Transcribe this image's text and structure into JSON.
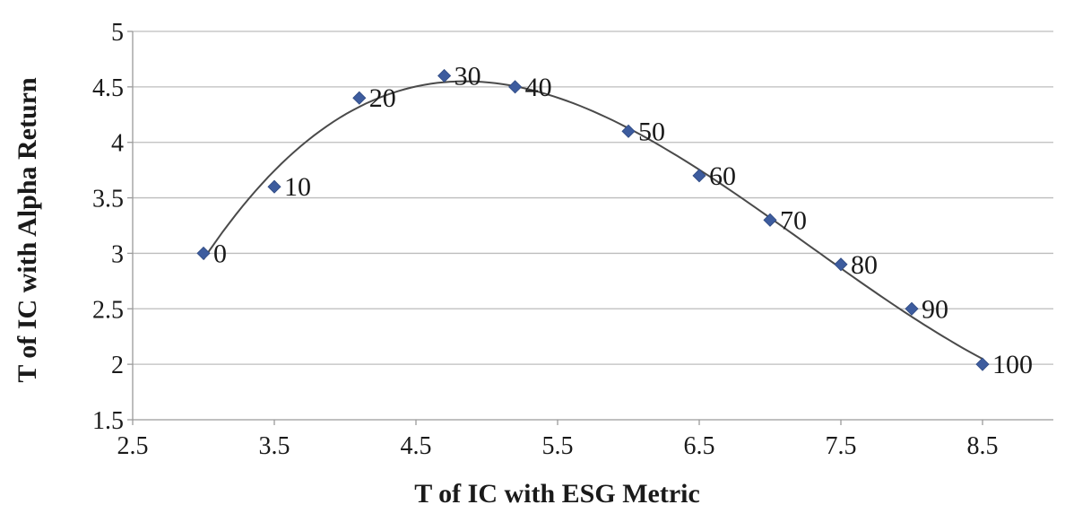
{
  "chart_data": {
    "type": "scatter",
    "title": "",
    "xlabel": "T of IC with ESG Metric",
    "ylabel": "T of IC with Alpha Return",
    "xlim": [
      2.5,
      9.0
    ],
    "ylim": [
      1.5,
      5.0
    ],
    "x_ticks": [
      2.5,
      3.5,
      4.5,
      5.5,
      6.5,
      7.5,
      8.5
    ],
    "x_tick_labels": [
      "2.5",
      "3.5",
      "4.5",
      "5.5",
      "6.5",
      "7.5",
      "8.5"
    ],
    "y_ticks": [
      1.5,
      2,
      2.5,
      3,
      3.5,
      4,
      4.5,
      5
    ],
    "y_tick_labels": [
      "1.5",
      "2",
      "2.5",
      "3",
      "3.5",
      "4",
      "4.5",
      "5"
    ],
    "grid": "horizontal",
    "legend": "none",
    "marker": "diamond",
    "trendline": "polynomial",
    "marker_color": "#3d5c9e",
    "trendline_color": "#4a4a4a",
    "points": [
      {
        "x": 3.0,
        "y": 3.0,
        "label": "0"
      },
      {
        "x": 3.5,
        "y": 3.6,
        "label": "10"
      },
      {
        "x": 4.1,
        "y": 4.4,
        "label": "20"
      },
      {
        "x": 4.7,
        "y": 4.6,
        "label": "30"
      },
      {
        "x": 5.2,
        "y": 4.5,
        "label": "40"
      },
      {
        "x": 6.0,
        "y": 4.1,
        "label": "50"
      },
      {
        "x": 6.5,
        "y": 3.7,
        "label": "60"
      },
      {
        "x": 7.0,
        "y": 3.3,
        "label": "70"
      },
      {
        "x": 7.5,
        "y": 2.9,
        "label": "80"
      },
      {
        "x": 8.0,
        "y": 2.5,
        "label": "90"
      },
      {
        "x": 8.5,
        "y": 2.0,
        "label": "100"
      }
    ]
  }
}
